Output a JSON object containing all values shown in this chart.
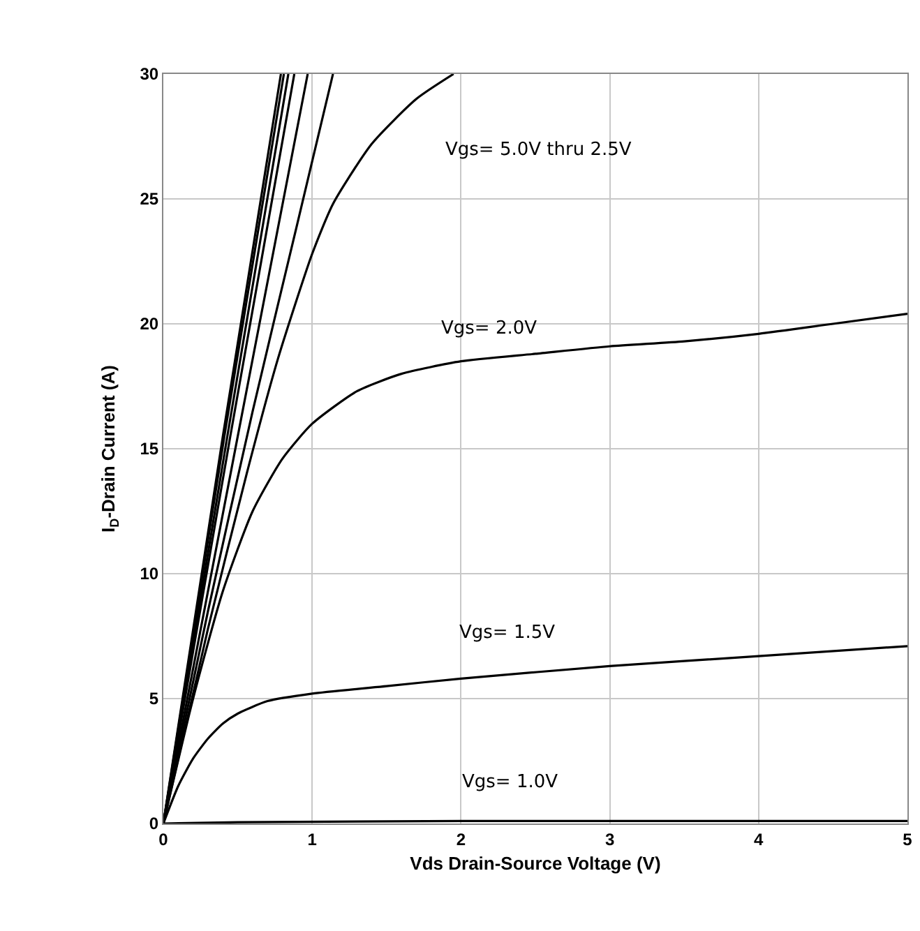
{
  "chart_data": {
    "type": "line",
    "xlabel": "Vds Drain-Source Voltage (V)",
    "ylabel": "I$_{D}$-Drain Current (A)",
    "xlim": [
      0,
      5
    ],
    "ylim": [
      0,
      30
    ],
    "xticks": [
      0,
      1,
      2,
      3,
      4,
      5
    ],
    "yticks": [
      0,
      5,
      10,
      15,
      20,
      25,
      30
    ],
    "grid": true,
    "marker": "none",
    "line_style": "solid",
    "series": [
      {
        "color": "#000000",
        "x": [
          0,
          0.4,
          0.79
        ],
        "values": [
          0,
          15.5,
          30
        ]
      },
      {
        "color": "#000000",
        "x": [
          0,
          0.41,
          0.81
        ],
        "values": [
          0,
          15.5,
          30
        ]
      },
      {
        "color": "#000000",
        "x": [
          0,
          0.43,
          0.84
        ],
        "values": [
          0,
          15.5,
          30
        ]
      },
      {
        "color": "#000000",
        "x": [
          0,
          0.45,
          0.88
        ],
        "values": [
          0,
          15.5,
          30
        ]
      },
      {
        "color": "#000000",
        "x": [
          0,
          0.5,
          0.97
        ],
        "values": [
          0,
          15.5,
          30
        ]
      },
      {
        "color": "#000000",
        "x": [
          0,
          0.3,
          0.6,
          0.9,
          1.14
        ],
        "values": [
          0,
          8.5,
          16.5,
          24,
          30
        ]
      },
      {
        "color": "#000000",
        "x": [
          0,
          0.3,
          0.56,
          0.77,
          1.0,
          1.14,
          1.4,
          1.7,
          1.95
        ],
        "values": [
          0,
          7.8,
          14,
          18.6,
          22.8,
          24.8,
          27.2,
          29,
          30
        ]
      },
      {
        "color": "#000000",
        "x": [
          0,
          0.2,
          0.4,
          0.6,
          0.8,
          1.0,
          1.3,
          1.6,
          2,
          2.5,
          3,
          3.5,
          4,
          4.5,
          5
        ],
        "values": [
          0,
          5,
          9.3,
          12.5,
          14.6,
          16,
          17.3,
          18,
          18.5,
          18.8,
          19.1,
          19.3,
          19.6,
          20,
          20.4
        ]
      },
      {
        "color": "#000000",
        "x": [
          0,
          0.1,
          0.2,
          0.3,
          0.4,
          0.5,
          0.7,
          1,
          1.5,
          2,
          3,
          4,
          5
        ],
        "values": [
          0,
          1.5,
          2.6,
          3.4,
          4,
          4.4,
          4.9,
          5.2,
          5.5,
          5.8,
          6.3,
          6.7,
          7.1
        ]
      },
      {
        "color": "#000000",
        "x": [
          0,
          0.5,
          2,
          5
        ],
        "values": [
          0,
          0.05,
          0.1,
          0.1
        ]
      }
    ],
    "annotations": [
      "Vgs= 5.0V thru 2.5V",
      "Vgs= 2.0V",
      "Vgs= 1.5V",
      "Vgs= 1.0V"
    ]
  }
}
